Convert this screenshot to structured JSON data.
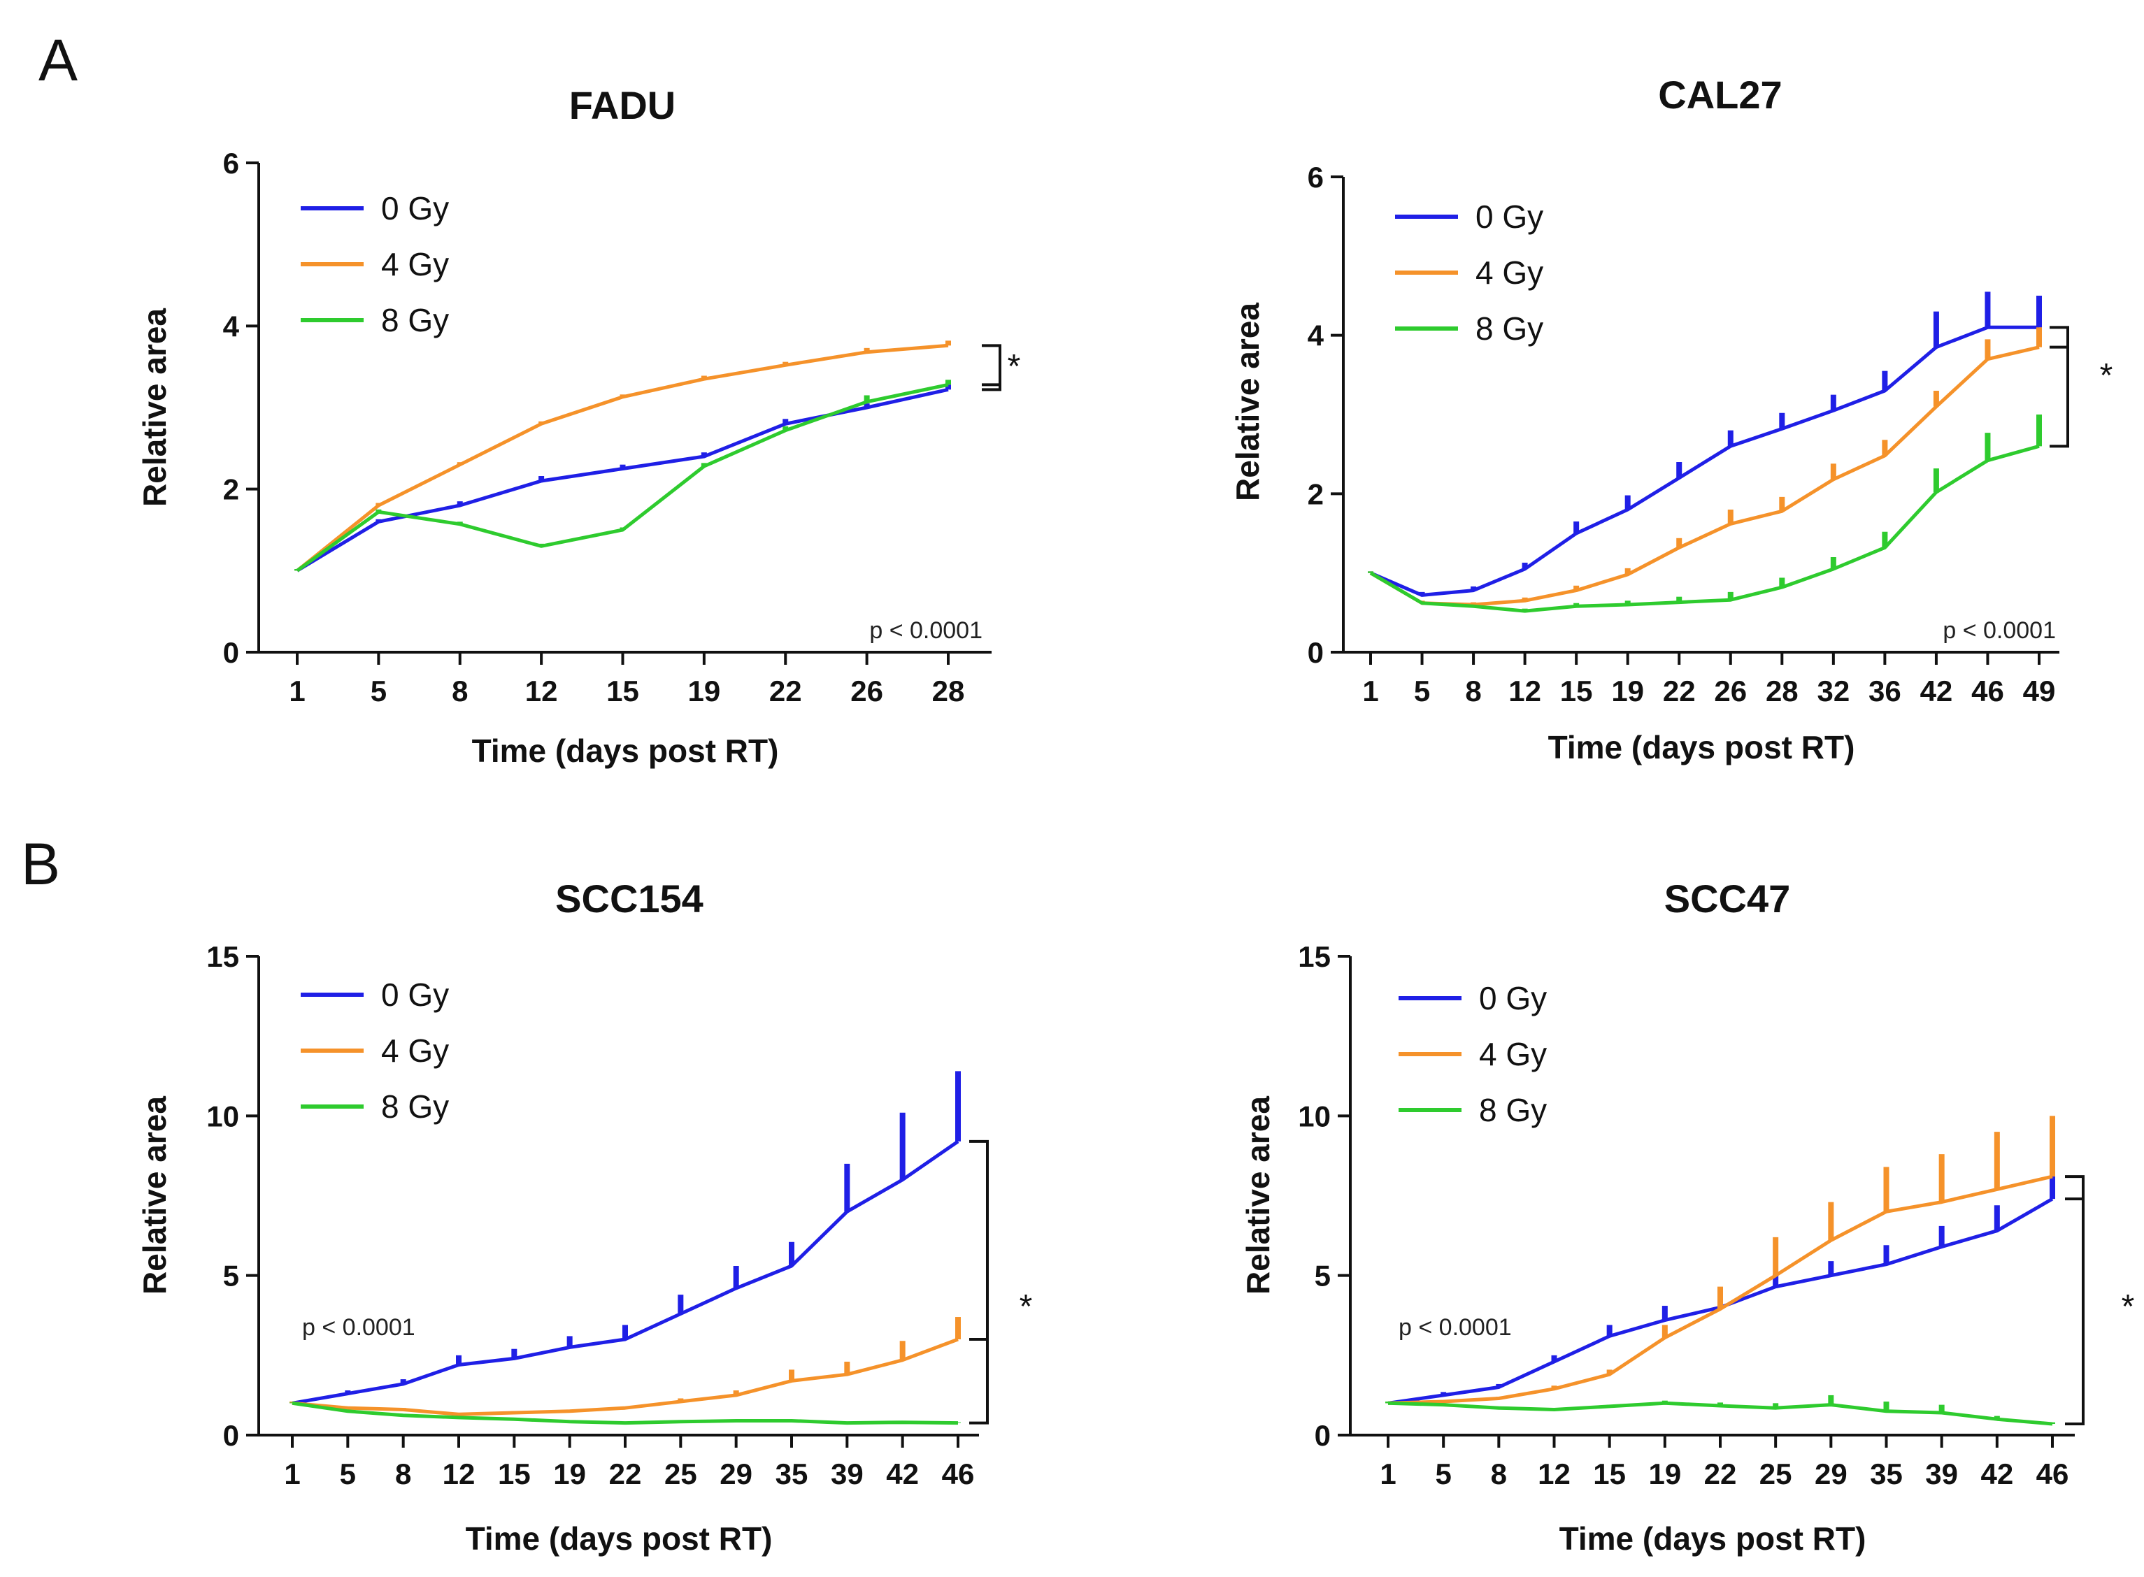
{
  "panels": [
    {
      "label": "A"
    },
    {
      "label": "B"
    }
  ],
  "chart_data": [
    {
      "type": "line",
      "title": "FADU",
      "xlabel": "Time (days post RT)",
      "ylabel": "Relative area",
      "categories": [
        "1",
        "5",
        "8",
        "12",
        "15",
        "19",
        "22",
        "26",
        "28"
      ],
      "ylim": [
        0,
        6
      ],
      "yticks": [
        0,
        2,
        4,
        6
      ],
      "pvalue": "p < 0.0001",
      "significance": "*",
      "legend_position": "top-left",
      "series": [
        {
          "name": "0 Gy",
          "color": "#1f1fe6",
          "values": [
            1.0,
            1.6,
            1.8,
            2.1,
            2.25,
            2.4,
            2.8,
            3.0,
            3.22
          ],
          "errors": [
            0.02,
            0.03,
            0.05,
            0.06,
            0.05,
            0.05,
            0.06,
            0.05,
            0.06
          ]
        },
        {
          "name": "4 Gy",
          "color": "#f5922a",
          "values": [
            1.0,
            1.8,
            2.3,
            2.8,
            3.13,
            3.35,
            3.52,
            3.68,
            3.76
          ],
          "errors": [
            0.02,
            0.03,
            0.03,
            0.03,
            0.03,
            0.04,
            0.04,
            0.05,
            0.06
          ]
        },
        {
          "name": "8 Gy",
          "color": "#2ecb2e",
          "values": [
            1.0,
            1.72,
            1.57,
            1.3,
            1.5,
            2.28,
            2.72,
            3.07,
            3.28
          ],
          "errors": [
            0.02,
            0.03,
            0.03,
            0.03,
            0.03,
            0.04,
            0.05,
            0.08,
            0.06
          ]
        }
      ]
    },
    {
      "type": "line",
      "title": "CAL27",
      "xlabel": "Time (days post RT)",
      "ylabel": "Relative area",
      "categories": [
        "1",
        "5",
        "8",
        "12",
        "15",
        "19",
        "22",
        "26",
        "28",
        "32",
        "36",
        "42",
        "46",
        "49"
      ],
      "ylim": [
        0,
        6
      ],
      "yticks": [
        0,
        2,
        4,
        6
      ],
      "pvalue": "p < 0.0001",
      "significance": "*",
      "legend_position": "top-left",
      "series": [
        {
          "name": "0 Gy",
          "color": "#1f1fe6",
          "values": [
            1.0,
            0.72,
            0.78,
            1.05,
            1.5,
            1.8,
            2.2,
            2.6,
            2.82,
            3.05,
            3.3,
            3.85,
            4.1,
            4.1
          ],
          "errors": [
            0.02,
            0.04,
            0.05,
            0.08,
            0.15,
            0.18,
            0.2,
            0.2,
            0.2,
            0.2,
            0.25,
            0.45,
            0.45,
            0.4
          ]
        },
        {
          "name": "4 Gy",
          "color": "#f5922a",
          "values": [
            1.0,
            0.62,
            0.6,
            0.65,
            0.78,
            0.98,
            1.32,
            1.62,
            1.78,
            2.18,
            2.48,
            3.1,
            3.7,
            3.85
          ],
          "errors": [
            0.02,
            0.03,
            0.03,
            0.04,
            0.06,
            0.08,
            0.12,
            0.18,
            0.18,
            0.2,
            0.2,
            0.2,
            0.25,
            0.25
          ]
        },
        {
          "name": "8 Gy",
          "color": "#2ecb2e",
          "values": [
            1.0,
            0.62,
            0.58,
            0.52,
            0.58,
            0.6,
            0.63,
            0.66,
            0.82,
            1.05,
            1.32,
            2.02,
            2.42,
            2.6
          ],
          "errors": [
            0.02,
            0.02,
            0.02,
            0.03,
            0.04,
            0.05,
            0.07,
            0.1,
            0.12,
            0.15,
            0.2,
            0.3,
            0.35,
            0.4
          ]
        }
      ]
    },
    {
      "type": "line",
      "title": "SCC154",
      "xlabel": "Time (days post RT)",
      "ylabel": "Relative area",
      "categories": [
        "1",
        "5",
        "8",
        "12",
        "15",
        "19",
        "22",
        "25",
        "29",
        "35",
        "39",
        "42",
        "46"
      ],
      "ylim": [
        0,
        15
      ],
      "yticks": [
        0,
        5,
        10,
        15
      ],
      "pvalue": "p < 0.0001",
      "significance": "*",
      "legend_position": "top-left",
      "series": [
        {
          "name": "0 Gy",
          "color": "#1f1fe6",
          "values": [
            1.0,
            1.3,
            1.6,
            2.2,
            2.4,
            2.75,
            3.0,
            3.8,
            4.6,
            5.3,
            7.0,
            8.0,
            9.2
          ],
          "errors": [
            0.05,
            0.1,
            0.15,
            0.3,
            0.3,
            0.35,
            0.45,
            0.6,
            0.7,
            0.75,
            1.5,
            2.1,
            2.2
          ]
        },
        {
          "name": "4 Gy",
          "color": "#f5922a",
          "values": [
            1.0,
            0.85,
            0.8,
            0.65,
            0.7,
            0.75,
            0.85,
            1.05,
            1.25,
            1.7,
            1.9,
            2.35,
            3.0
          ],
          "errors": [
            0.05,
            0.05,
            0.05,
            0.05,
            0.05,
            0.05,
            0.05,
            0.1,
            0.15,
            0.35,
            0.4,
            0.6,
            0.7
          ]
        },
        {
          "name": "8 Gy",
          "color": "#2ecb2e",
          "values": [
            1.0,
            0.75,
            0.62,
            0.55,
            0.5,
            0.42,
            0.38,
            0.42,
            0.45,
            0.45,
            0.38,
            0.4,
            0.38
          ],
          "errors": [
            0.02,
            0.02,
            0.02,
            0.02,
            0.02,
            0.02,
            0.02,
            0.02,
            0.02,
            0.02,
            0.02,
            0.02,
            0.02
          ]
        }
      ]
    },
    {
      "type": "line",
      "title": "SCC47",
      "xlabel": "Time (days post RT)",
      "ylabel": "Relative area",
      "categories": [
        "1",
        "5",
        "8",
        "12",
        "15",
        "19",
        "22",
        "25",
        "29",
        "35",
        "39",
        "42",
        "46"
      ],
      "ylim": [
        0,
        15
      ],
      "yticks": [
        0,
        5,
        10,
        15
      ],
      "pvalue": "p < 0.0001",
      "significance": "*",
      "legend_position": "top-left",
      "series": [
        {
          "name": "0 Gy",
          "color": "#1f1fe6",
          "values": [
            1.0,
            1.25,
            1.5,
            2.3,
            3.1,
            3.6,
            4.0,
            4.65,
            5.0,
            5.35,
            5.9,
            6.4,
            7.4
          ],
          "errors": [
            0.05,
            0.1,
            0.1,
            0.2,
            0.35,
            0.45,
            0.6,
            0.4,
            0.45,
            0.6,
            0.65,
            0.8,
            0.9
          ]
        },
        {
          "name": "4 Gy",
          "color": "#f5922a",
          "values": [
            1.0,
            1.05,
            1.15,
            1.45,
            1.9,
            3.05,
            3.95,
            5.0,
            6.1,
            7.0,
            7.3,
            7.7,
            8.1
          ],
          "errors": [
            0.05,
            0.05,
            0.05,
            0.1,
            0.15,
            0.4,
            0.7,
            1.2,
            1.2,
            1.4,
            1.5,
            1.8,
            1.9
          ]
        },
        {
          "name": "8 Gy",
          "color": "#2ecb2e",
          "values": [
            1.0,
            0.95,
            0.85,
            0.8,
            0.9,
            1.0,
            0.92,
            0.85,
            0.95,
            0.75,
            0.7,
            0.5,
            0.35
          ],
          "errors": [
            0.05,
            0.05,
            0.05,
            0.05,
            0.05,
            0.08,
            0.1,
            0.15,
            0.3,
            0.3,
            0.25,
            0.1,
            0.05
          ]
        }
      ]
    }
  ]
}
